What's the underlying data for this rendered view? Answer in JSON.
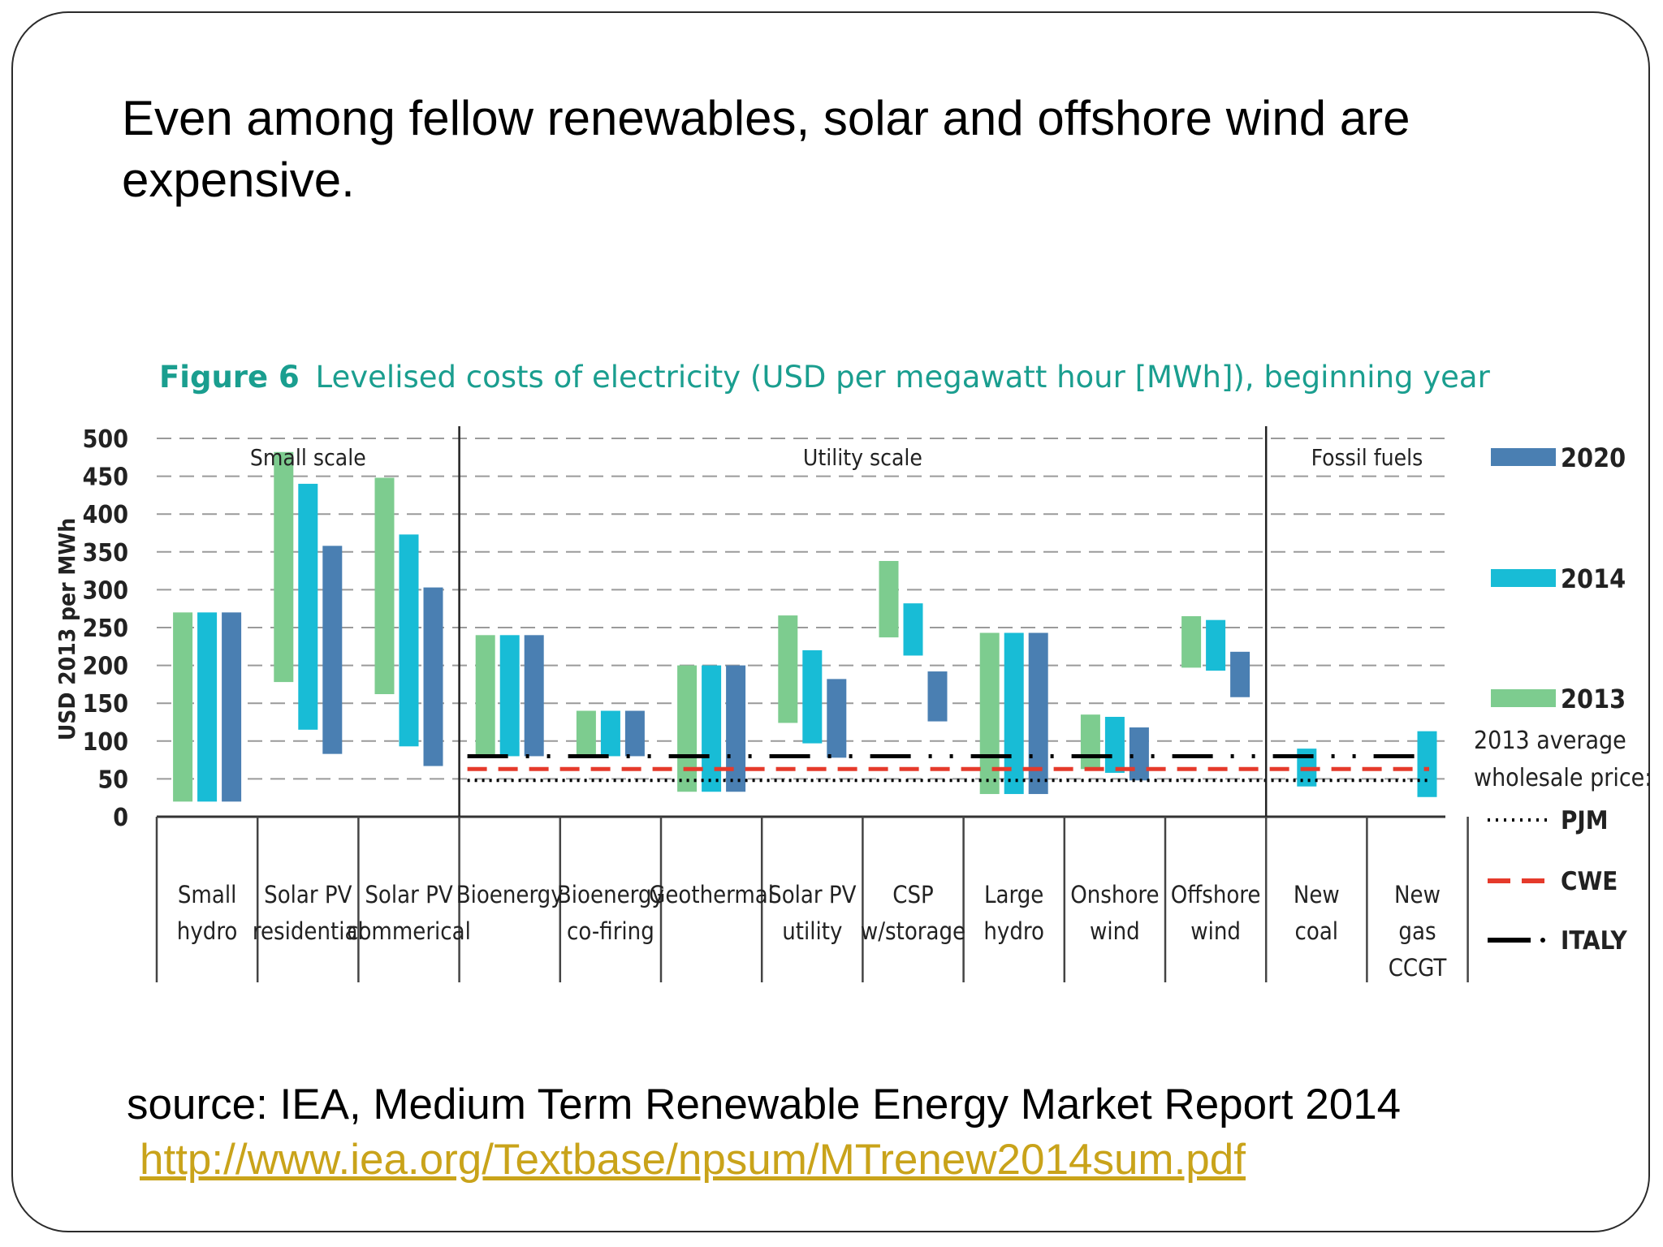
{
  "slide": {
    "title": "Even among fellow renewables, solar and offshore wind are expensive.",
    "source": "source: IEA, Medium Term Renewable Energy Market Report 2014",
    "link": "http://www.iea.org/Textbase/npsum/MTrenew2014sum.pdf"
  },
  "figure": {
    "number": "Figure 6",
    "caption": "Levelised costs of electricity (USD per megawatt hour [MWh]), beginning year"
  },
  "chart_data": {
    "type": "bar",
    "subtype": "floating-range",
    "ylabel": "USD 2013 per MWh",
    "ylim": [
      0,
      500
    ],
    "yticks": [
      0,
      50,
      100,
      150,
      200,
      250,
      300,
      350,
      400,
      450,
      500
    ],
    "grid": "dashed horizontal",
    "legend_position": "right",
    "groups": [
      {
        "label": "Small scale",
        "span": [
          0,
          2
        ]
      },
      {
        "label": "Utility scale",
        "span": [
          3,
          10
        ]
      },
      {
        "label": "Fossil fuels",
        "span": [
          11,
          12
        ]
      }
    ],
    "series_colors": {
      "2013": "#7dcc8f",
      "2014": "#18bcd6",
      "2020": "#4a7fb2"
    },
    "categories": [
      {
        "label": [
          "Small",
          "hydro"
        ],
        "bars": [
          {
            "series": "2013",
            "low": 20,
            "high": 270
          },
          {
            "series": "2014",
            "low": 20,
            "high": 270
          },
          {
            "series": "2020",
            "low": 20,
            "high": 270
          }
        ]
      },
      {
        "label": [
          "Solar PV",
          "residential"
        ],
        "bars": [
          {
            "series": "2013",
            "low": 178,
            "high": 482
          },
          {
            "series": "2014",
            "low": 115,
            "high": 440
          },
          {
            "series": "2020",
            "low": 83,
            "high": 358
          }
        ]
      },
      {
        "label": [
          "Solar PV",
          "commerical"
        ],
        "bars": [
          {
            "series": "2013",
            "low": 162,
            "high": 448
          },
          {
            "series": "2014",
            "low": 93,
            "high": 373
          },
          {
            "series": "2020",
            "low": 67,
            "high": 303
          }
        ]
      },
      {
        "label": [
          "Bioenergy"
        ],
        "bars": [
          {
            "series": "2013",
            "low": 80,
            "high": 240
          },
          {
            "series": "2014",
            "low": 80,
            "high": 240
          },
          {
            "series": "2020",
            "low": 80,
            "high": 240
          }
        ]
      },
      {
        "label": [
          "Bioenergy",
          "co-firing"
        ],
        "bars": [
          {
            "series": "2013",
            "low": 80,
            "high": 140
          },
          {
            "series": "2014",
            "low": 80,
            "high": 140
          },
          {
            "series": "2020",
            "low": 80,
            "high": 140
          }
        ]
      },
      {
        "label": [
          "Geothermal"
        ],
        "bars": [
          {
            "series": "2013",
            "low": 33,
            "high": 200
          },
          {
            "series": "2014",
            "low": 33,
            "high": 200
          },
          {
            "series": "2020",
            "low": 33,
            "high": 200
          }
        ]
      },
      {
        "label": [
          "Solar PV",
          "utility"
        ],
        "bars": [
          {
            "series": "2013",
            "low": 124,
            "high": 266
          },
          {
            "series": "2014",
            "low": 97,
            "high": 220
          },
          {
            "series": "2020",
            "low": 78,
            "high": 182
          }
        ]
      },
      {
        "label": [
          "CSP",
          "w/storage"
        ],
        "bars": [
          {
            "series": "2013",
            "low": 237,
            "high": 338
          },
          {
            "series": "2014",
            "low": 213,
            "high": 282
          },
          {
            "series": "2020",
            "low": 126,
            "high": 192
          }
        ]
      },
      {
        "label": [
          "Large",
          "hydro"
        ],
        "bars": [
          {
            "series": "2013",
            "low": 30,
            "high": 243
          },
          {
            "series": "2014",
            "low": 30,
            "high": 243
          },
          {
            "series": "2020",
            "low": 30,
            "high": 243
          }
        ]
      },
      {
        "label": [
          "Onshore",
          "wind"
        ],
        "bars": [
          {
            "series": "2013",
            "low": 63,
            "high": 135
          },
          {
            "series": "2014",
            "low": 58,
            "high": 132
          },
          {
            "series": "2020",
            "low": 48,
            "high": 118
          }
        ]
      },
      {
        "label": [
          "Offshore",
          "wind"
        ],
        "bars": [
          {
            "series": "2013",
            "low": 197,
            "high": 265
          },
          {
            "series": "2014",
            "low": 193,
            "high": 260
          },
          {
            "series": "2020",
            "low": 158,
            "high": 218
          }
        ]
      },
      {
        "label": [
          "New",
          "coal"
        ],
        "bars": [
          {
            "series": "2014",
            "low": 40,
            "high": 90
          }
        ]
      },
      {
        "label": [
          "New",
          "gas",
          "CCGT"
        ],
        "bars": [
          {
            "series": "2014",
            "low": 26,
            "high": 113
          }
        ]
      }
    ],
    "reference_lines": [
      {
        "name": "PJM",
        "value": 48,
        "style": "dotted",
        "color": "#000000"
      },
      {
        "name": "CWE",
        "value": 63,
        "style": "dashed",
        "color": "#e53a2b"
      },
      {
        "name": "ITALY",
        "value": 80,
        "style": "dash-dot",
        "color": "#000000"
      }
    ],
    "legend": {
      "series": [
        "2020",
        "2014",
        "2013"
      ],
      "title_lines": [
        "2013 average",
        "wholesale price:"
      ],
      "lines": [
        "PJM",
        "CWE",
        "ITALY"
      ]
    }
  }
}
